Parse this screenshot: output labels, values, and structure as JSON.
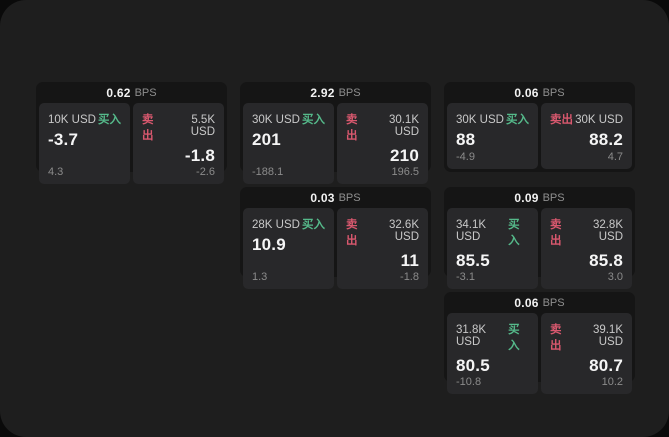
{
  "page": {
    "frame_bg": "#1e1e1e",
    "outer_bg": "#0a0a0a",
    "card_bg": "#151515",
    "panel_bg": "#28282a"
  },
  "labels": {
    "buy": "买入",
    "sell": "卖出",
    "bps": "BPS"
  },
  "colors": {
    "buy_green": "#55b98a",
    "sell_red": "#d9586e"
  },
  "cards": [
    {
      "col": 0,
      "row": 0,
      "bps": "0.62",
      "buy": {
        "notional": "10K USD",
        "price": "-3.7",
        "delta": "4.3"
      },
      "sell": {
        "notional": "5.5K USD",
        "price": "-1.8",
        "delta": "-2.6"
      }
    },
    {
      "col": 1,
      "row": 0,
      "bps": "2.92",
      "buy": {
        "notional": "30K USD",
        "price": "201",
        "delta": "-188.1"
      },
      "sell": {
        "notional": "30.1K USD",
        "price": "210",
        "delta": "196.5"
      }
    },
    {
      "col": 2,
      "row": 0,
      "bps": "0.06",
      "buy": {
        "notional": "30K USD",
        "price": "88",
        "delta": "-4.9"
      },
      "sell": {
        "notional": "30K USD",
        "price": "88.2",
        "delta": "4.7"
      }
    },
    {
      "col": 1,
      "row": 1,
      "bps": "0.03",
      "buy": {
        "notional": "28K USD",
        "price": "10.9",
        "delta": "1.3"
      },
      "sell": {
        "notional": "32.6K USD",
        "price": "11",
        "delta": "-1.8"
      }
    },
    {
      "col": 2,
      "row": 1,
      "bps": "0.09",
      "buy": {
        "notional": "34.1K USD",
        "price": "85.5",
        "delta": "-3.1"
      },
      "sell": {
        "notional": "32.8K USD",
        "price": "85.8",
        "delta": "3.0"
      }
    },
    {
      "col": 2,
      "row": 2,
      "bps": "0.06",
      "buy": {
        "notional": "31.8K USD",
        "price": "80.5",
        "delta": "-10.8"
      },
      "sell": {
        "notional": "39.1K USD",
        "price": "80.7",
        "delta": "10.2"
      }
    }
  ]
}
